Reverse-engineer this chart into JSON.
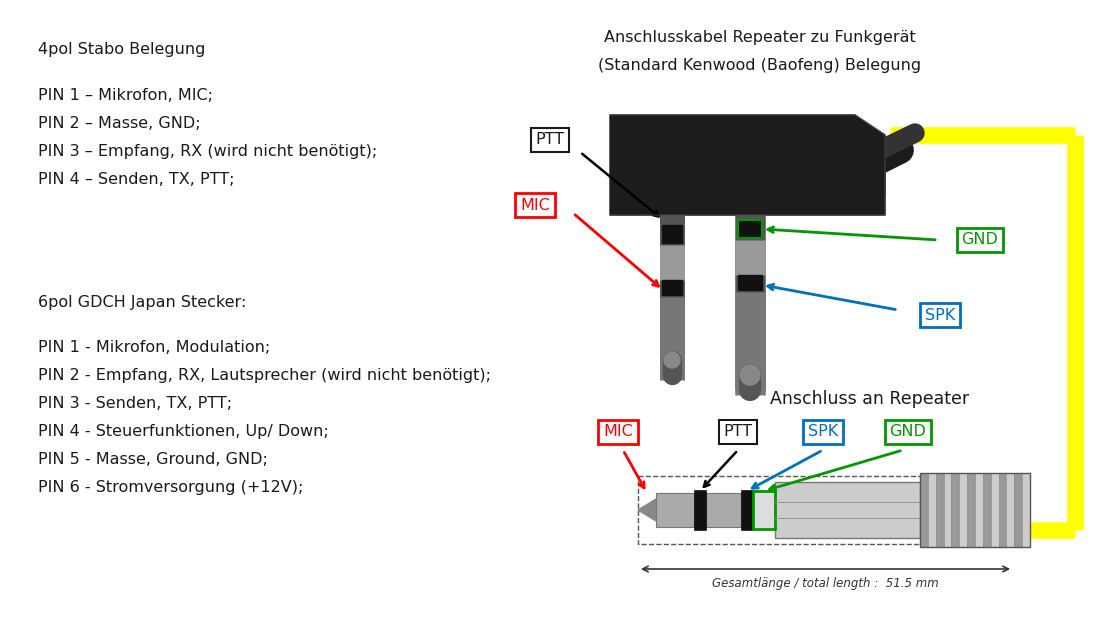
{
  "bg_color": "#ffffff",
  "title_top": "Anschlusskabel Repeater zu Funkgerät",
  "title_top2": "(Standard Kenwood (Baofeng) Belegung",
  "title_bottom": "Anschluss an Repeater",
  "left_title1": "4pol Stabo Belegung",
  "left_lines1": [
    "PIN 1 – Mikrofon, MIC;",
    "PIN 2 – Masse, GND;",
    "PIN 3 – Empfang, RX (wird nicht benötigt);",
    "PIN 4 – Senden, TX, PTT;"
  ],
  "left_title2": "6pol GDCH Japan Stecker:",
  "left_lines2": [
    "PIN 1 - Mikrofon, Modulation;",
    "PIN 2 - Empfang, RX, Lautsprecher (wird nicht benötigt);",
    "PIN 3 - Senden, TX, PTT;",
    "PIN 4 - Steuerfunktionen, Up/ Down;",
    "PIN 5 - Masse, Ground, GND;",
    "PIN 6 - Stromversorgung (+12V);"
  ],
  "label_PTT_top": "PTT",
  "label_MIC_top": "MIC",
  "label_GND_top": "GND",
  "label_SPK_top": "SPK",
  "label_MIC_bot": "MIC",
  "label_PTT_bot": "PTT",
  "label_SPK_bot": "SPK",
  "label_GND_bot": "GND",
  "gesamtlaenge": "Gesamtlänge / total length :  51.5 mm",
  "color_red": "#ff0000",
  "color_black": "#000000",
  "color_green": "#009900",
  "color_blue": "#0070c0",
  "color_yellow": "#ffff00",
  "color_dark": "#333333"
}
